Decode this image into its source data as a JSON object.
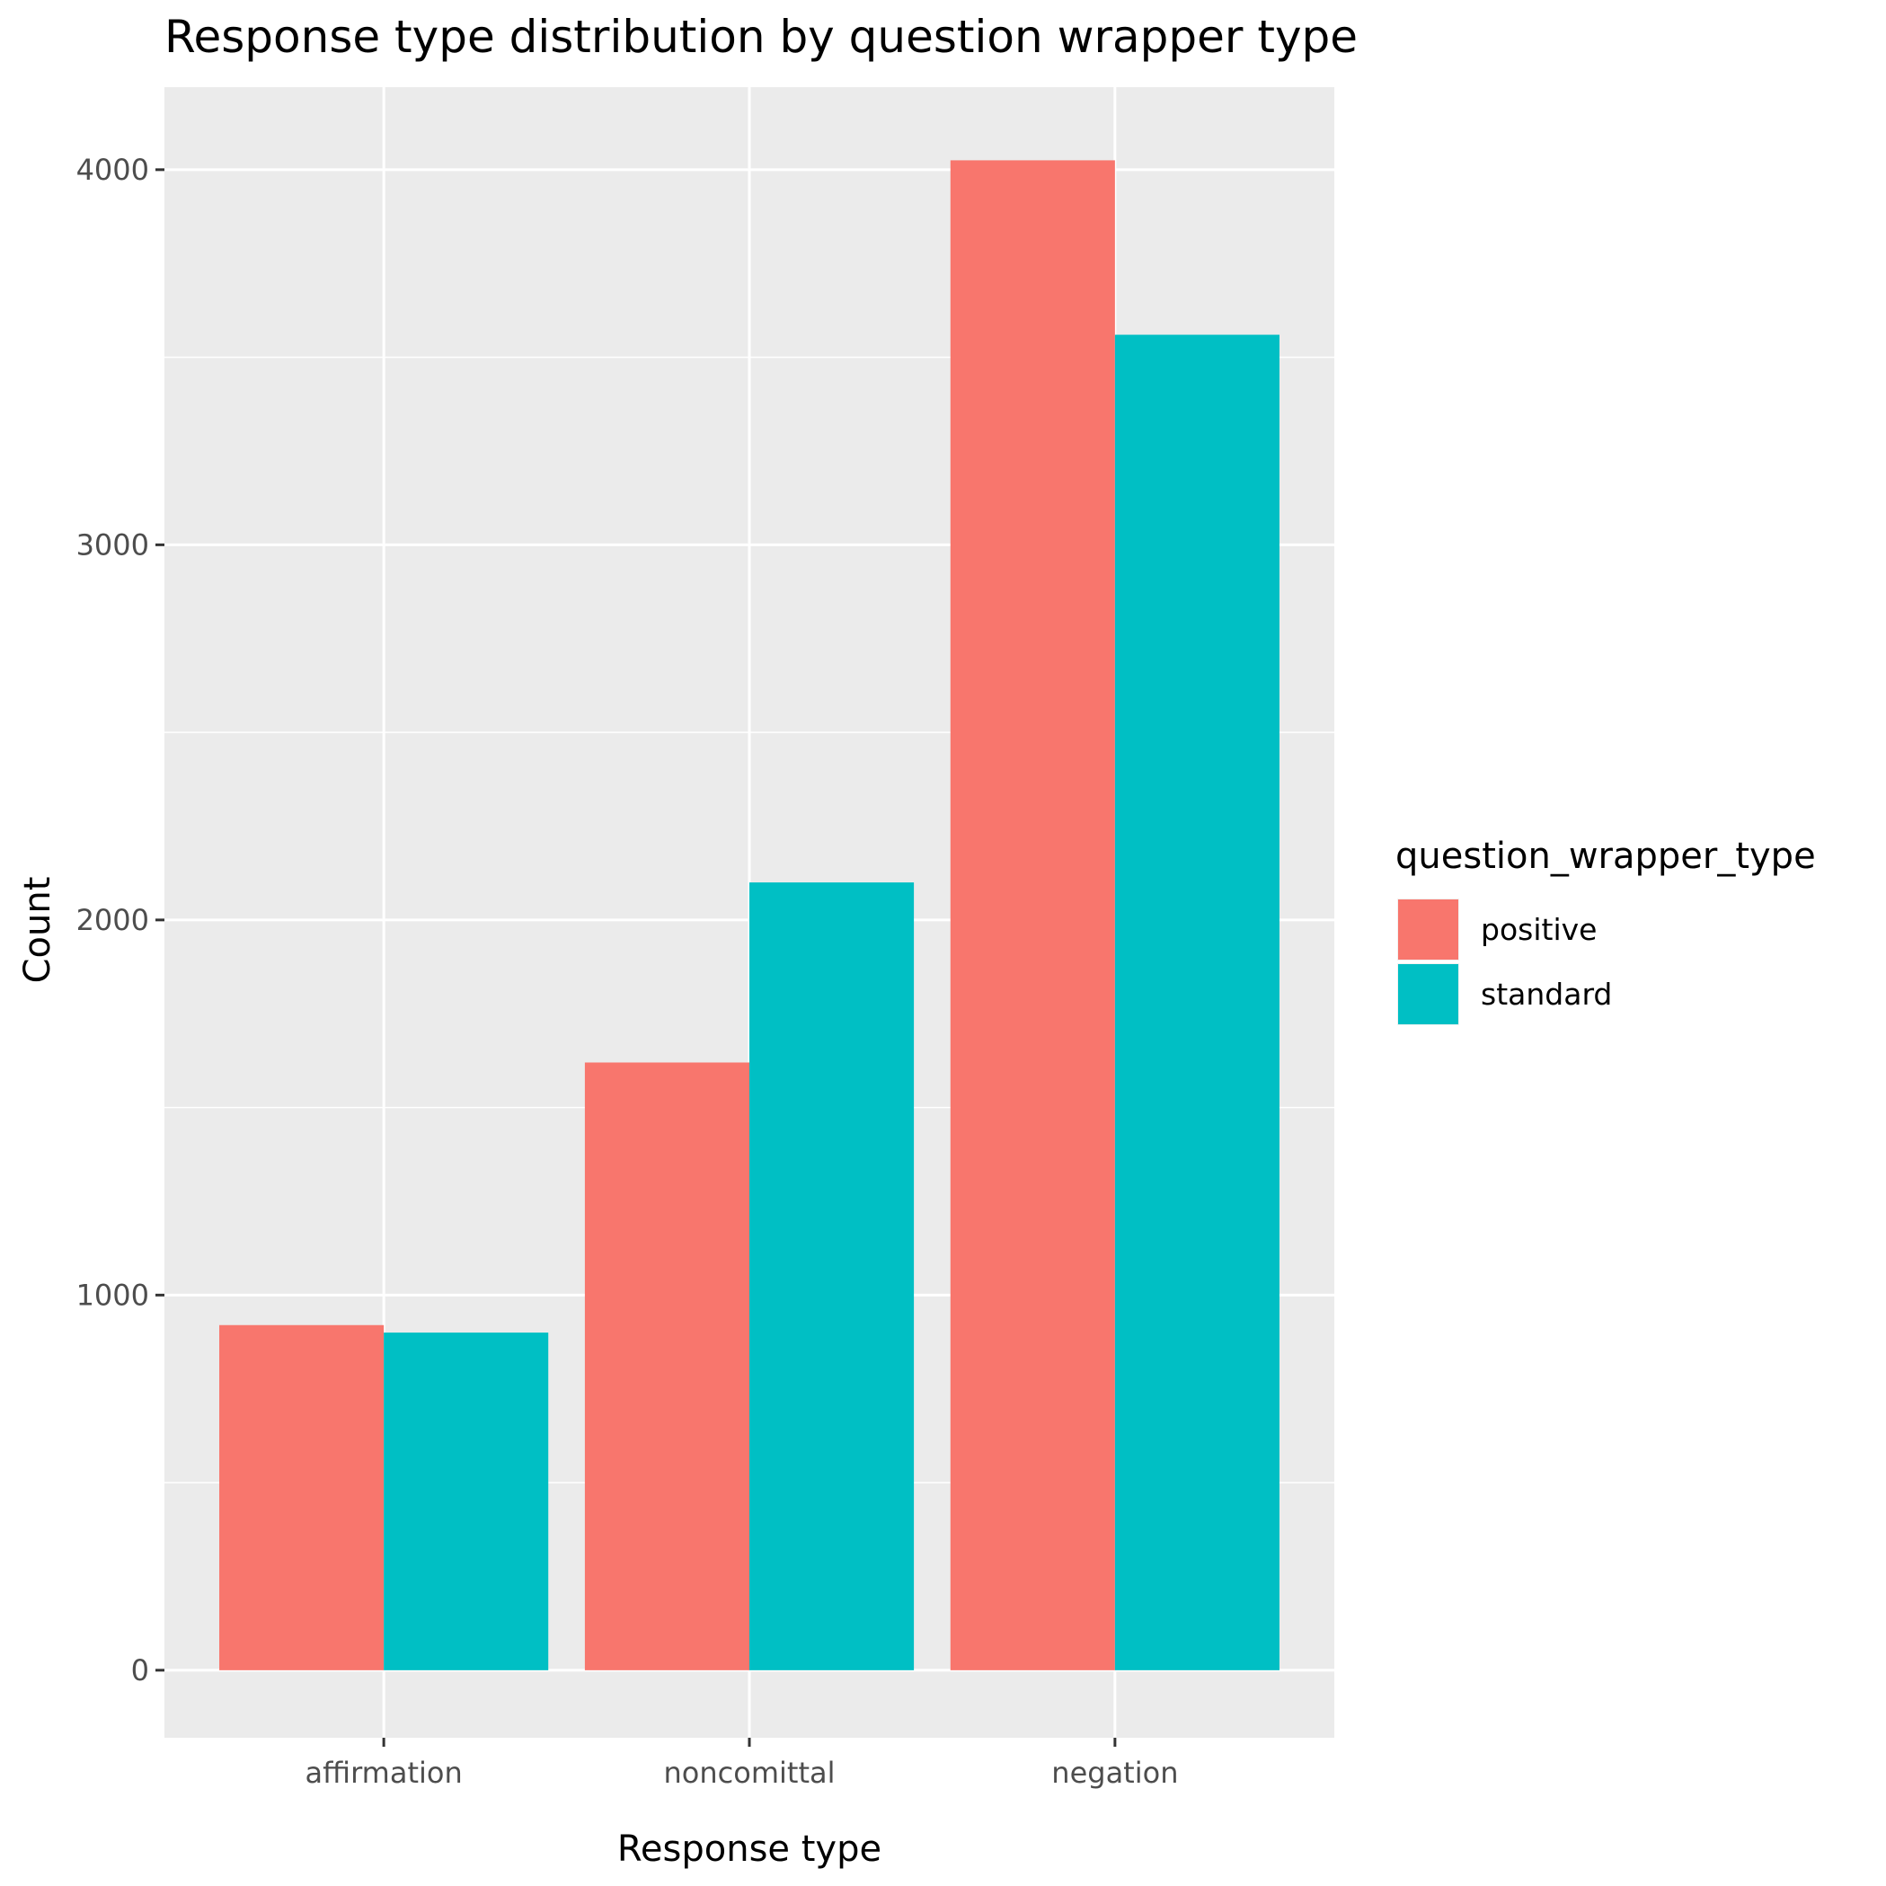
{
  "chart_data": {
    "type": "bar",
    "title": "Response type distribution by question wrapper type",
    "xlabel": "Response type",
    "ylabel": "Count",
    "categories": [
      "affirmation",
      "noncomittal",
      "negation"
    ],
    "series": [
      {
        "name": "positive",
        "color": "#F8766D",
        "values": [
          920,
          1620,
          4025
        ]
      },
      {
        "name": "standard",
        "color": "#00BFC4",
        "values": [
          900,
          2100,
          3560
        ]
      }
    ],
    "ylim": [
      -180,
      4220
    ],
    "yticks": [
      0,
      1000,
      2000,
      3000,
      4000
    ],
    "grid": true,
    "legend": {
      "title": "question_wrapper_type",
      "position": "right"
    },
    "colors": {
      "panel_background": "#EBEBEB",
      "grid": "#FFFFFF",
      "tick": "#333333"
    }
  }
}
